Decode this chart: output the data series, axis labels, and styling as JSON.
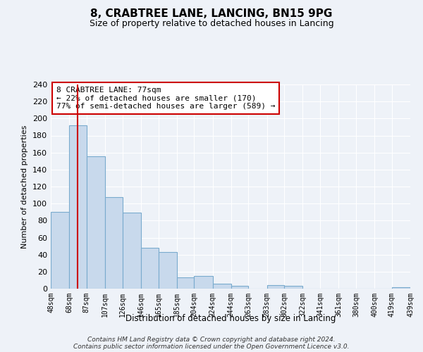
{
  "title": "8, CRABTREE LANE, LANCING, BN15 9PG",
  "subtitle": "Size of property relative to detached houses in Lancing",
  "xlabel": "Distribution of detached houses by size in Lancing",
  "ylabel": "Number of detached properties",
  "bar_edges": [
    48,
    68,
    87,
    107,
    126,
    146,
    165,
    185,
    204,
    224,
    244,
    263,
    283,
    302,
    322,
    341,
    361,
    380,
    400,
    419,
    439
  ],
  "bar_heights": [
    90,
    192,
    156,
    108,
    89,
    48,
    43,
    13,
    15,
    6,
    3,
    0,
    4,
    3,
    0,
    0,
    0,
    0,
    0,
    2
  ],
  "tick_labels": [
    "48sqm",
    "68sqm",
    "87sqm",
    "107sqm",
    "126sqm",
    "146sqm",
    "165sqm",
    "185sqm",
    "204sqm",
    "224sqm",
    "244sqm",
    "263sqm",
    "283sqm",
    "302sqm",
    "322sqm",
    "341sqm",
    "361sqm",
    "380sqm",
    "400sqm",
    "419sqm",
    "439sqm"
  ],
  "bar_color": "#c8d9ec",
  "bar_edge_color": "#7aabce",
  "vline_x": 77,
  "vline_color": "#cc0000",
  "ylim": [
    0,
    240
  ],
  "yticks": [
    0,
    20,
    40,
    60,
    80,
    100,
    120,
    140,
    160,
    180,
    200,
    220,
    240
  ],
  "annotation_title": "8 CRABTREE LANE: 77sqm",
  "annotation_line1": "← 22% of detached houses are smaller (170)",
  "annotation_line2": "77% of semi-detached houses are larger (589) →",
  "annotation_box_color": "#ffffff",
  "annotation_box_edge": "#cc0000",
  "footer_line1": "Contains HM Land Registry data © Crown copyright and database right 2024.",
  "footer_line2": "Contains public sector information licensed under the Open Government Licence v3.0.",
  "bg_color": "#eef2f8",
  "grid_color": "#ffffff",
  "title_fontsize": 11,
  "subtitle_fontsize": 9
}
